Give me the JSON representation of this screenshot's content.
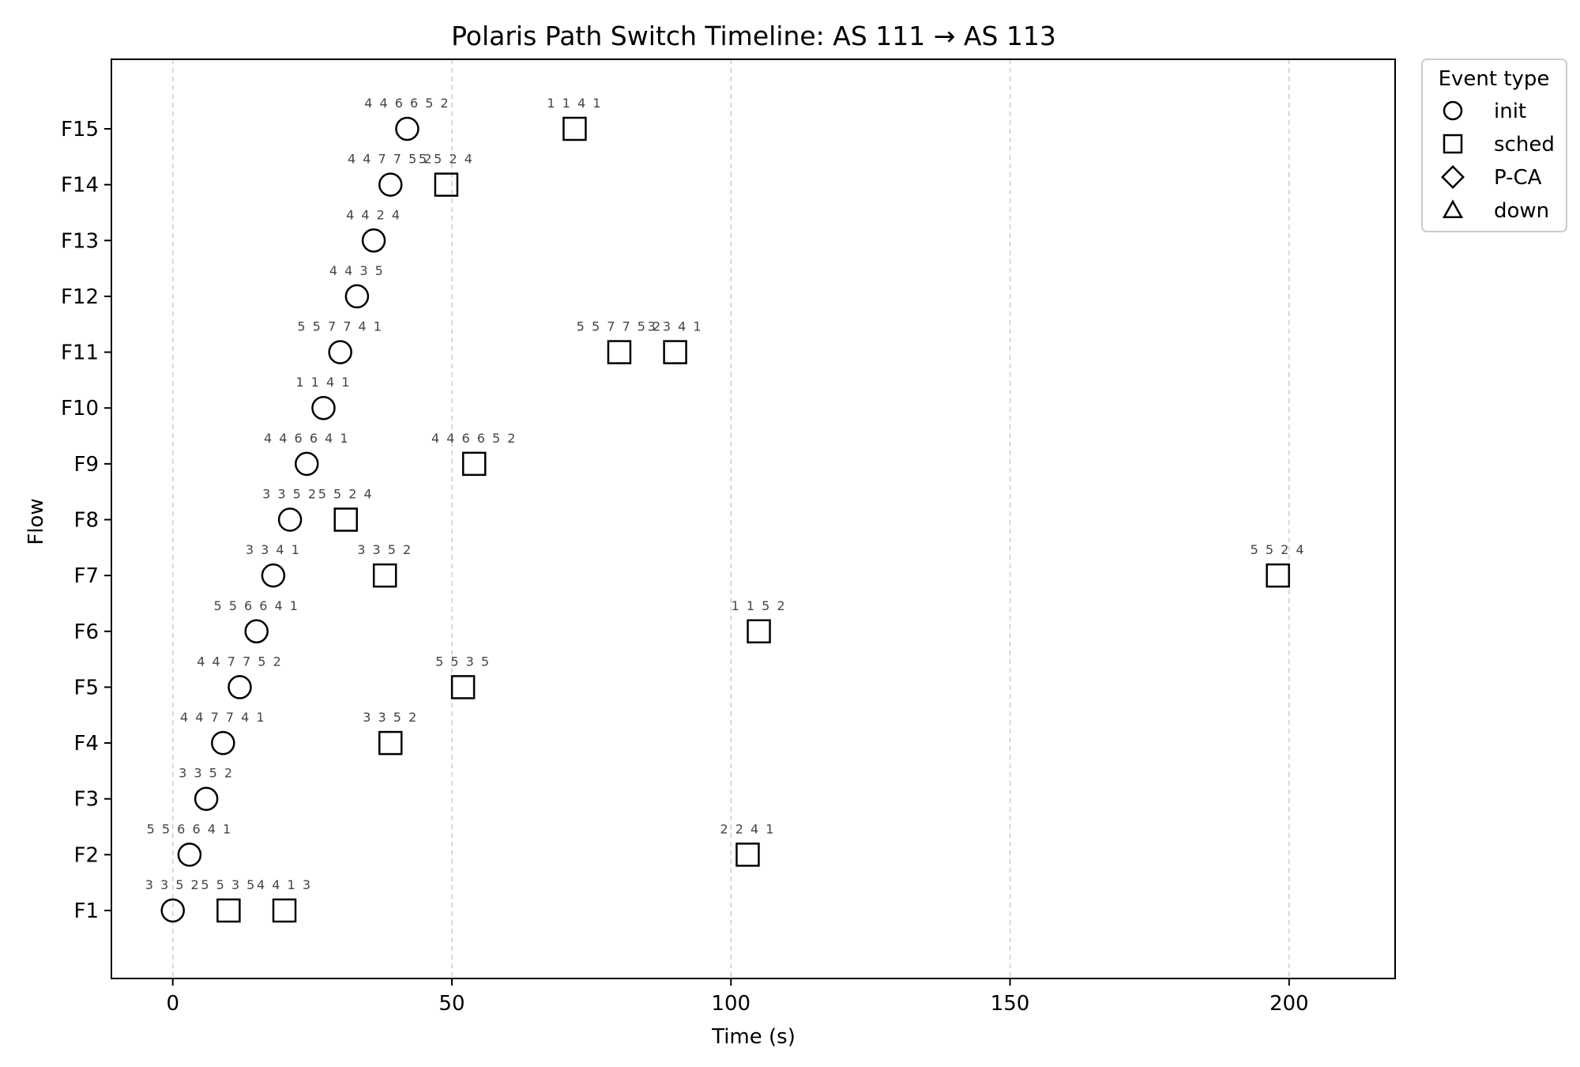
{
  "chart_data": {
    "type": "scatter",
    "title": "Polaris Path Switch Timeline: AS 111 → AS 113",
    "xlabel": "Time (s)",
    "ylabel": "Flow",
    "xlim": [
      -11,
      219
    ],
    "xticks": [
      0,
      50,
      100,
      150,
      200
    ],
    "categories": [
      "F1",
      "F2",
      "F3",
      "F4",
      "F5",
      "F6",
      "F7",
      "F8",
      "F9",
      "F10",
      "F11",
      "F12",
      "F13",
      "F14",
      "F15"
    ],
    "grid": "vertical dashed",
    "legend": {
      "title": "Event type",
      "placement": "outside-top-right",
      "entries": [
        {
          "label": "init",
          "marker": "circle"
        },
        {
          "label": "sched",
          "marker": "square"
        },
        {
          "label": "P-CA",
          "marker": "diamond"
        },
        {
          "label": "down",
          "marker": "triangle"
        }
      ]
    },
    "events": [
      {
        "flow": "F1",
        "x": 0,
        "type": "init",
        "label": "3 3 5 2"
      },
      {
        "flow": "F1",
        "x": 10,
        "type": "sched",
        "label": "5 5 3 5"
      },
      {
        "flow": "F1",
        "x": 20,
        "type": "sched",
        "label": "4 4 1 3"
      },
      {
        "flow": "F2",
        "x": 3,
        "type": "init",
        "label": "5 5 6 6 4 1"
      },
      {
        "flow": "F2",
        "x": 103,
        "type": "sched",
        "label": "2 2 4 1"
      },
      {
        "flow": "F3",
        "x": 6,
        "type": "init",
        "label": "3 3 5 2"
      },
      {
        "flow": "F4",
        "x": 9,
        "type": "init",
        "label": "4 4 7 7 4 1"
      },
      {
        "flow": "F4",
        "x": 39,
        "type": "sched",
        "label": "3 3 5 2"
      },
      {
        "flow": "F5",
        "x": 12,
        "type": "init",
        "label": "4 4 7 7 5 2"
      },
      {
        "flow": "F5",
        "x": 52,
        "type": "sched",
        "label": "5 5 3 5"
      },
      {
        "flow": "F6",
        "x": 15,
        "type": "init",
        "label": "5 5 6 6 4 1"
      },
      {
        "flow": "F6",
        "x": 105,
        "type": "sched",
        "label": "1 1 5 2"
      },
      {
        "flow": "F7",
        "x": 18,
        "type": "init",
        "label": "3 3 4 1"
      },
      {
        "flow": "F7",
        "x": 38,
        "type": "sched",
        "label": "3 3 5 2"
      },
      {
        "flow": "F7",
        "x": 198,
        "type": "sched",
        "label": "5 5 2 4"
      },
      {
        "flow": "F8",
        "x": 21,
        "type": "init",
        "label": "3 3 5 2"
      },
      {
        "flow": "F8",
        "x": 31,
        "type": "sched",
        "label": "5 5 2 4"
      },
      {
        "flow": "F9",
        "x": 24,
        "type": "init",
        "label": "4 4 6 6 4 1"
      },
      {
        "flow": "F9",
        "x": 54,
        "type": "sched",
        "label": "4 4 6 6 5 2"
      },
      {
        "flow": "F10",
        "x": 27,
        "type": "init",
        "label": "1 1 4 1"
      },
      {
        "flow": "F11",
        "x": 30,
        "type": "init",
        "label": "5 5 7 7 4 1"
      },
      {
        "flow": "F11",
        "x": 80,
        "type": "sched",
        "label": "5 5 7 7 5 2"
      },
      {
        "flow": "F11",
        "x": 90,
        "type": "sched",
        "label": "3 3 4 1"
      },
      {
        "flow": "F12",
        "x": 33,
        "type": "init",
        "label": "4 4 3 5"
      },
      {
        "flow": "F13",
        "x": 36,
        "type": "init",
        "label": "4 4 2 4"
      },
      {
        "flow": "F14",
        "x": 39,
        "type": "init",
        "label": "4 4 7 7 5 2"
      },
      {
        "flow": "F14",
        "x": 49,
        "type": "sched",
        "label": "5 5 2 4"
      },
      {
        "flow": "F15",
        "x": 42,
        "type": "init",
        "label": "4 4 6 6 5 2"
      },
      {
        "flow": "F15",
        "x": 72,
        "type": "sched",
        "label": "1 1 4 1"
      }
    ]
  }
}
